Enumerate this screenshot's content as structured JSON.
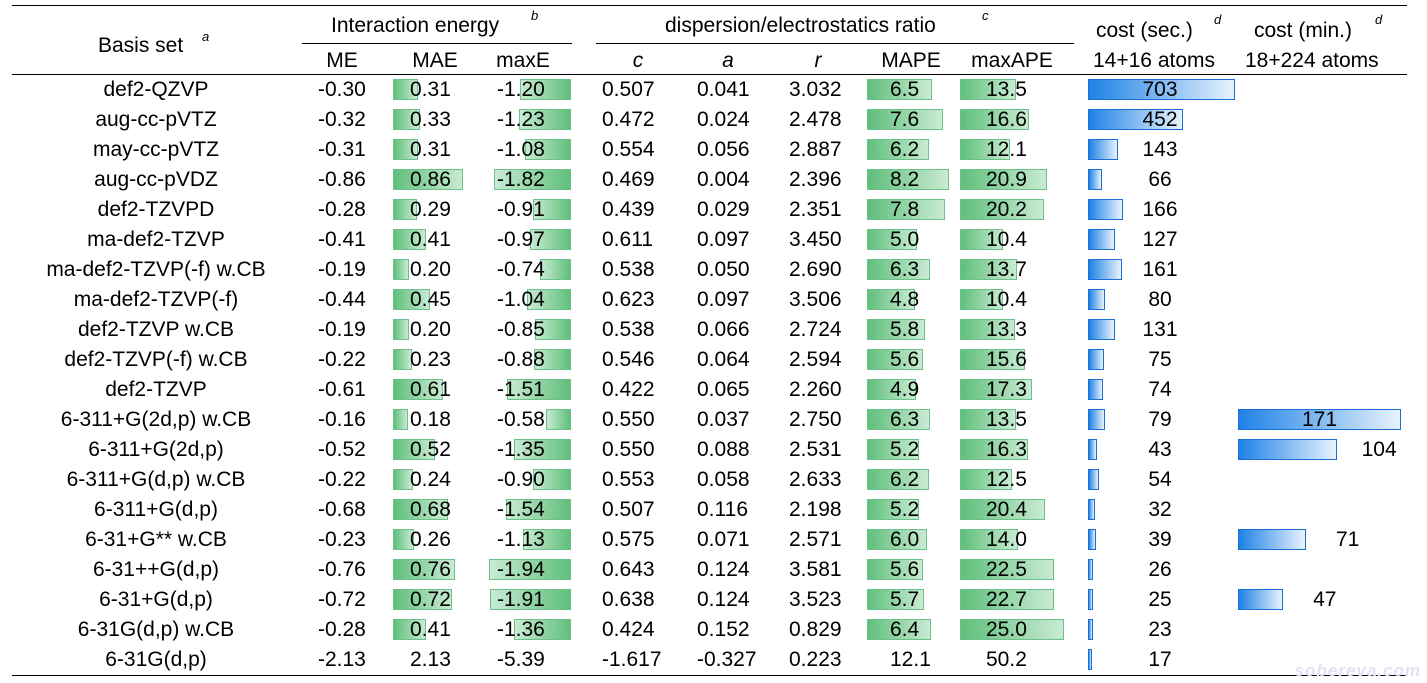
{
  "header": {
    "basis_set": "Basis set",
    "basis_set_sup": "a",
    "interaction_energy": "Interaction energy",
    "interaction_energy_sup": "b",
    "disp_ratio": "dispersion/electrostatics ratio",
    "disp_ratio_sup": "c",
    "cost_sec": "cost (sec.)",
    "cost_sec_sup": "d",
    "cost_min": "cost (min.)",
    "cost_min_sup": "d",
    "cost_sec_sub": "14+16 atoms",
    "cost_min_sub": "18+224 atoms",
    "columns": [
      "ME",
      "MAE",
      "maxE",
      "c",
      "a",
      "r",
      "MAPE",
      "maxAPE"
    ]
  },
  "rows": [
    {
      "basis": "def2-QZVP",
      "me": "-0.30",
      "mae": "0.31",
      "maxe": "-1.20",
      "c": "0.507",
      "a": "0.041",
      "r": "3.032",
      "mape": "6.5",
      "maxape": "13.5",
      "cost_sec": "703",
      "cost_min": ""
    },
    {
      "basis": "aug-cc-pVTZ",
      "me": "-0.32",
      "mae": "0.33",
      "maxe": "-1.23",
      "c": "0.472",
      "a": "0.024",
      "r": "2.478",
      "mape": "7.6",
      "maxape": "16.6",
      "cost_sec": "452",
      "cost_min": ""
    },
    {
      "basis": "may-cc-pVTZ",
      "me": "-0.31",
      "mae": "0.31",
      "maxe": "-1.08",
      "c": "0.554",
      "a": "0.056",
      "r": "2.887",
      "mape": "6.2",
      "maxape": "12.1",
      "cost_sec": "143",
      "cost_min": ""
    },
    {
      "basis": "aug-cc-pVDZ",
      "me": "-0.86",
      "mae": "0.86",
      "maxe": "-1.82",
      "c": "0.469",
      "a": "0.004",
      "r": "2.396",
      "mape": "8.2",
      "maxape": "20.9",
      "cost_sec": "66",
      "cost_min": ""
    },
    {
      "basis": "def2-TZVPD",
      "me": "-0.28",
      "mae": "0.29",
      "maxe": "-0.91",
      "c": "0.439",
      "a": "0.029",
      "r": "2.351",
      "mape": "7.8",
      "maxape": "20.2",
      "cost_sec": "166",
      "cost_min": ""
    },
    {
      "basis": "ma-def2-TZVP",
      "me": "-0.41",
      "mae": "0.41",
      "maxe": "-0.97",
      "c": "0.611",
      "a": "0.097",
      "r": "3.450",
      "mape": "5.0",
      "maxape": "10.4",
      "cost_sec": "127",
      "cost_min": ""
    },
    {
      "basis": "ma-def2-TZVP(-f) w.CB",
      "me": "-0.19",
      "mae": "0.20",
      "maxe": "-0.74",
      "c": "0.538",
      "a": "0.050",
      "r": "2.690",
      "mape": "6.3",
      "maxape": "13.7",
      "cost_sec": "161",
      "cost_min": ""
    },
    {
      "basis": "ma-def2-TZVP(-f)",
      "me": "-0.44",
      "mae": "0.45",
      "maxe": "-1.04",
      "c": "0.623",
      "a": "0.097",
      "r": "3.506",
      "mape": "4.8",
      "maxape": "10.4",
      "cost_sec": "80",
      "cost_min": ""
    },
    {
      "basis": "def2-TZVP w.CB",
      "me": "-0.19",
      "mae": "0.20",
      "maxe": "-0.85",
      "c": "0.538",
      "a": "0.066",
      "r": "2.724",
      "mape": "5.8",
      "maxape": "13.3",
      "cost_sec": "131",
      "cost_min": ""
    },
    {
      "basis": "def2-TZVP(-f) w.CB",
      "me": "-0.22",
      "mae": "0.23",
      "maxe": "-0.88",
      "c": "0.546",
      "a": "0.064",
      "r": "2.594",
      "mape": "5.6",
      "maxape": "15.6",
      "cost_sec": "75",
      "cost_min": ""
    },
    {
      "basis": "def2-TZVP",
      "me": "-0.61",
      "mae": "0.61",
      "maxe": "-1.51",
      "c": "0.422",
      "a": "0.065",
      "r": "2.260",
      "mape": "4.9",
      "maxape": "17.3",
      "cost_sec": "74",
      "cost_min": ""
    },
    {
      "basis": "6-311+G(2d,p) w.CB",
      "me": "-0.16",
      "mae": "0.18",
      "maxe": "-0.58",
      "c": "0.550",
      "a": "0.037",
      "r": "2.750",
      "mape": "6.3",
      "maxape": "13.5",
      "cost_sec": "79",
      "cost_min": "171"
    },
    {
      "basis": "6-311+G(2d,p)",
      "me": "-0.52",
      "mae": "0.52",
      "maxe": "-1.35",
      "c": "0.550",
      "a": "0.088",
      "r": "2.531",
      "mape": "5.2",
      "maxape": "16.3",
      "cost_sec": "43",
      "cost_min": "104"
    },
    {
      "basis": "6-311+G(d,p) w.CB",
      "me": "-0.22",
      "mae": "0.24",
      "maxe": "-0.90",
      "c": "0.553",
      "a": "0.058",
      "r": "2.633",
      "mape": "6.2",
      "maxape": "12.5",
      "cost_sec": "54",
      "cost_min": ""
    },
    {
      "basis": "6-311+G(d,p)",
      "me": "-0.68",
      "mae": "0.68",
      "maxe": "-1.54",
      "c": "0.507",
      "a": "0.116",
      "r": "2.198",
      "mape": "5.2",
      "maxape": "20.4",
      "cost_sec": "32",
      "cost_min": ""
    },
    {
      "basis": "6-31+G** w.CB",
      "me": "-0.23",
      "mae": "0.26",
      "maxe": "-1.13",
      "c": "0.575",
      "a": "0.071",
      "r": "2.571",
      "mape": "6.0",
      "maxape": "14.0",
      "cost_sec": "39",
      "cost_min": "71"
    },
    {
      "basis": "6-31++G(d,p)",
      "me": "-0.76",
      "mae": "0.76",
      "maxe": "-1.94",
      "c": "0.643",
      "a": "0.124",
      "r": "3.581",
      "mape": "5.6",
      "maxape": "22.5",
      "cost_sec": "26",
      "cost_min": ""
    },
    {
      "basis": "6-31+G(d,p)",
      "me": "-0.72",
      "mae": "0.72",
      "maxe": "-1.91",
      "c": "0.638",
      "a": "0.124",
      "r": "3.523",
      "mape": "5.7",
      "maxape": "22.7",
      "cost_sec": "25",
      "cost_min": "47"
    },
    {
      "basis": "6-31G(d,p) w.CB",
      "me": "-0.28",
      "mae": "0.41",
      "maxe": "-1.36",
      "c": "0.424",
      "a": "0.152",
      "r": "0.829",
      "mape": "6.4",
      "maxape": "25.0",
      "cost_sec": "23",
      "cost_min": ""
    },
    {
      "basis": "6-31G(d,p)",
      "me": "-2.13",
      "mae": "2.13",
      "maxe": "-5.39",
      "c": "-1.617",
      "a": "-0.327",
      "r": "0.223",
      "mape": "12.1",
      "maxape": "50.2",
      "cost_sec": "17",
      "cost_min": ""
    }
  ],
  "bar_scales": {
    "mae_max": 0.86,
    "maxe_max": 1.94,
    "mape_max": 8.2,
    "maxape_max": 25.0,
    "cost_sec_max": 703,
    "cost_min_max": 171
  },
  "watermark": "sobereva.com",
  "colors": {
    "green_bar": "#5fbf7a",
    "blue_bar": "#1e82e6"
  }
}
